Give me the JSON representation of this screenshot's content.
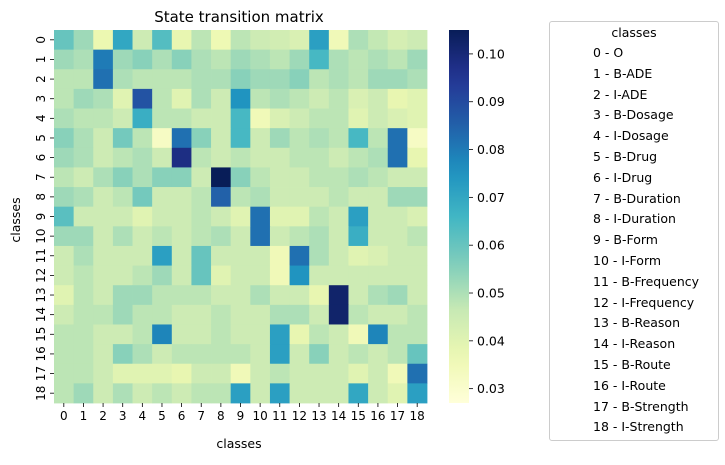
{
  "chart_data": {
    "type": "heatmap",
    "title": "State transition matrix",
    "xlabel": "classes",
    "ylabel": "classes",
    "x_categories": [
      "0",
      "1",
      "2",
      "3",
      "4",
      "5",
      "6",
      "7",
      "8",
      "9",
      "10",
      "11",
      "12",
      "13",
      "14",
      "15",
      "16",
      "17",
      "18"
    ],
    "y_categories": [
      "0",
      "1",
      "2",
      "3",
      "4",
      "5",
      "6",
      "7",
      "8",
      "9",
      "10",
      "11",
      "12",
      "13",
      "14",
      "15",
      "16",
      "17",
      "18"
    ],
    "colormap": "YlGnBu",
    "value_range": [
      0.027,
      0.105
    ],
    "colorbar_ticks": [
      "0.03",
      "0.04",
      "0.05",
      "0.06",
      "0.07",
      "0.08",
      "0.09",
      "0.10"
    ],
    "colorbar_tick_values": [
      0.03,
      0.04,
      0.05,
      0.06,
      0.07,
      0.08,
      0.09,
      0.1
    ],
    "values": [
      [
        0.06,
        0.052,
        0.037,
        0.07,
        0.045,
        0.063,
        0.038,
        0.048,
        0.036,
        0.048,
        0.045,
        0.044,
        0.042,
        0.072,
        0.035,
        0.05,
        0.047,
        0.043,
        0.045
      ],
      [
        0.052,
        0.05,
        0.08,
        0.052,
        0.055,
        0.05,
        0.055,
        0.05,
        0.048,
        0.052,
        0.05,
        0.048,
        0.052,
        0.065,
        0.05,
        0.048,
        0.05,
        0.048,
        0.052
      ],
      [
        0.048,
        0.048,
        0.082,
        0.05,
        0.048,
        0.048,
        0.048,
        0.05,
        0.05,
        0.055,
        0.052,
        0.052,
        0.055,
        0.048,
        0.05,
        0.048,
        0.052,
        0.052,
        0.05
      ],
      [
        0.048,
        0.052,
        0.05,
        0.04,
        0.088,
        0.048,
        0.04,
        0.05,
        0.045,
        0.075,
        0.048,
        0.05,
        0.048,
        0.045,
        0.048,
        0.042,
        0.045,
        0.038,
        0.04
      ],
      [
        0.05,
        0.048,
        0.048,
        0.045,
        0.068,
        0.048,
        0.048,
        0.045,
        0.045,
        0.065,
        0.035,
        0.042,
        0.045,
        0.048,
        0.048,
        0.04,
        0.045,
        0.042,
        0.04
      ],
      [
        0.055,
        0.05,
        0.045,
        0.058,
        0.048,
        0.032,
        0.082,
        0.055,
        0.045,
        0.065,
        0.045,
        0.052,
        0.048,
        0.05,
        0.048,
        0.065,
        0.048,
        0.082,
        0.032
      ],
      [
        0.052,
        0.05,
        0.045,
        0.048,
        0.05,
        0.045,
        0.098,
        0.048,
        0.045,
        0.048,
        0.045,
        0.045,
        0.048,
        0.048,
        0.045,
        0.048,
        0.05,
        0.082,
        0.038
      ],
      [
        0.048,
        0.045,
        0.05,
        0.055,
        0.05,
        0.055,
        0.055,
        0.045,
        0.105,
        0.055,
        0.048,
        0.045,
        0.045,
        0.048,
        0.048,
        0.05,
        0.048,
        0.045,
        0.045
      ],
      [
        0.052,
        0.05,
        0.045,
        0.048,
        0.058,
        0.045,
        0.045,
        0.048,
        0.085,
        0.048,
        0.05,
        0.045,
        0.045,
        0.045,
        0.048,
        0.045,
        0.045,
        0.052,
        0.052
      ],
      [
        0.062,
        0.045,
        0.045,
        0.045,
        0.04,
        0.045,
        0.045,
        0.048,
        0.045,
        0.04,
        0.082,
        0.04,
        0.04,
        0.048,
        0.045,
        0.072,
        0.045,
        0.045,
        0.042
      ],
      [
        0.052,
        0.052,
        0.045,
        0.05,
        0.045,
        0.048,
        0.045,
        0.048,
        0.05,
        0.045,
        0.082,
        0.045,
        0.048,
        0.05,
        0.045,
        0.068,
        0.045,
        0.045,
        0.048
      ],
      [
        0.045,
        0.05,
        0.045,
        0.045,
        0.045,
        0.072,
        0.045,
        0.06,
        0.045,
        0.045,
        0.045,
        0.035,
        0.082,
        0.05,
        0.045,
        0.04,
        0.042,
        0.045,
        0.045
      ],
      [
        0.045,
        0.048,
        0.045,
        0.045,
        0.048,
        0.052,
        0.045,
        0.06,
        0.04,
        0.045,
        0.045,
        0.035,
        0.075,
        0.045,
        0.045,
        0.045,
        0.045,
        0.045,
        0.045
      ],
      [
        0.04,
        0.048,
        0.045,
        0.052,
        0.052,
        0.048,
        0.048,
        0.048,
        0.045,
        0.045,
        0.05,
        0.045,
        0.045,
        0.038,
        0.102,
        0.045,
        0.05,
        0.052,
        0.045
      ],
      [
        0.045,
        0.048,
        0.048,
        0.052,
        0.048,
        0.048,
        0.045,
        0.045,
        0.048,
        0.045,
        0.045,
        0.05,
        0.05,
        0.045,
        0.102,
        0.048,
        0.045,
        0.045,
        0.048
      ],
      [
        0.048,
        0.048,
        0.045,
        0.045,
        0.048,
        0.078,
        0.045,
        0.045,
        0.048,
        0.045,
        0.045,
        0.072,
        0.038,
        0.048,
        0.045,
        0.035,
        0.078,
        0.048,
        0.048
      ],
      [
        0.048,
        0.048,
        0.045,
        0.055,
        0.05,
        0.045,
        0.048,
        0.048,
        0.048,
        0.048,
        0.045,
        0.072,
        0.045,
        0.055,
        0.045,
        0.048,
        0.045,
        0.048,
        0.06
      ],
      [
        0.048,
        0.048,
        0.045,
        0.04,
        0.04,
        0.04,
        0.038,
        0.045,
        0.045,
        0.035,
        0.045,
        0.048,
        0.045,
        0.045,
        0.045,
        0.04,
        0.045,
        0.035,
        0.082
      ],
      [
        0.048,
        0.052,
        0.045,
        0.05,
        0.045,
        0.048,
        0.045,
        0.048,
        0.048,
        0.072,
        0.045,
        0.072,
        0.045,
        0.045,
        0.045,
        0.07,
        0.045,
        0.04,
        0.072
      ]
    ],
    "legend": {
      "title": "classes",
      "placement": "outside-right",
      "entries": [
        "0 - O",
        "1 - B-ADE",
        "2 - I-ADE",
        "3 - B-Dosage",
        "4 - I-Dosage",
        "5 - B-Drug",
        "6 - I-Drug",
        "7 - B-Duration",
        "8 - I-Duration",
        "9 - B-Form",
        "10 - I-Form",
        "11 - B-Frequency",
        "12 - I-Frequency",
        "13 - B-Reason",
        "14 - I-Reason",
        "15 - B-Route",
        "16 - I-Route",
        "17 - B-Strength",
        "18 - I-Strength"
      ]
    }
  }
}
